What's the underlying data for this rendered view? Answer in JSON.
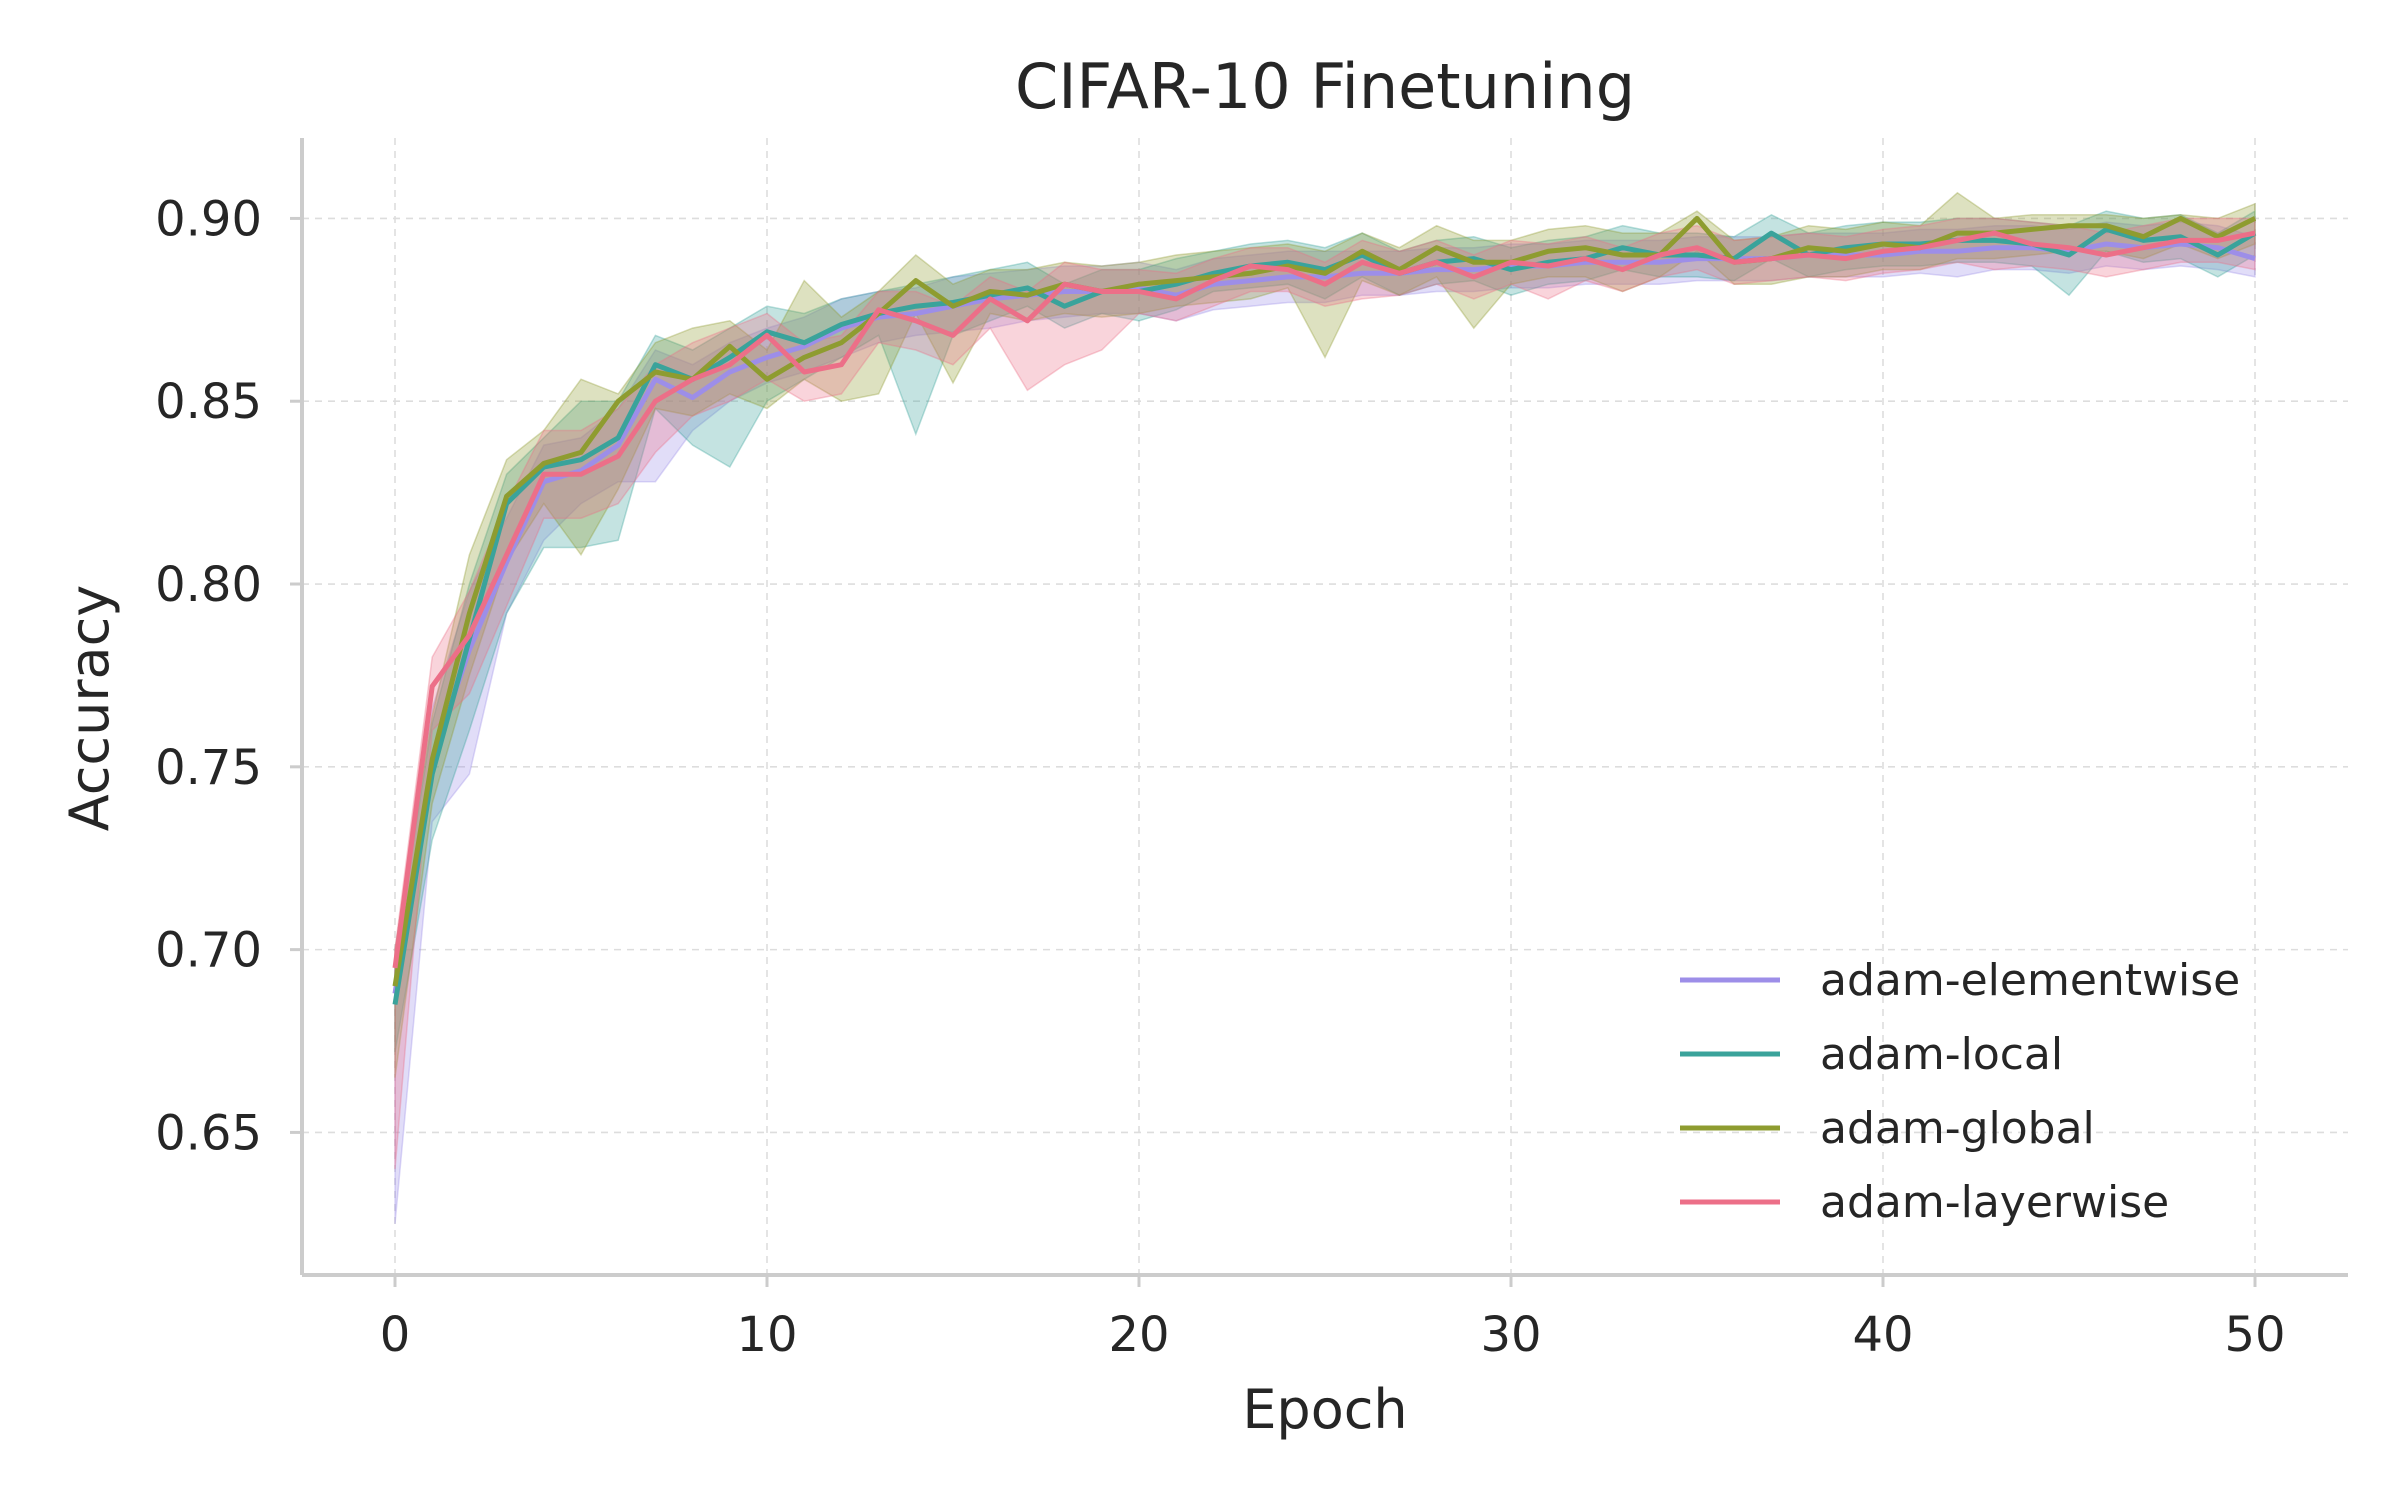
{
  "chart_data": {
    "type": "line",
    "title": "CIFAR-10 Finetuning",
    "xlabel": "Epoch",
    "ylabel": "Accuracy",
    "xlim": [
      -2.5,
      52.5
    ],
    "ylim": [
      0.611,
      0.922
    ],
    "xticks": [
      0,
      10,
      20,
      30,
      40,
      50
    ],
    "xtick_labels": [
      "0",
      "10",
      "20",
      "30",
      "40",
      "50"
    ],
    "yticks": [
      0.65,
      0.7,
      0.75,
      0.8,
      0.85,
      0.9
    ],
    "ytick_labels": [
      "0.65",
      "0.70",
      "0.75",
      "0.80",
      "0.85",
      "0.90"
    ],
    "grid": true,
    "legend_position": "lower-right",
    "x": [
      0,
      1,
      2,
      3,
      4,
      5,
      6,
      7,
      8,
      9,
      10,
      11,
      12,
      13,
      14,
      15,
      16,
      17,
      18,
      19,
      20,
      21,
      22,
      23,
      24,
      25,
      26,
      27,
      28,
      29,
      30,
      31,
      32,
      33,
      34,
      35,
      36,
      37,
      38,
      39,
      40,
      41,
      42,
      43,
      44,
      45,
      46,
      47,
      48,
      49,
      50
    ],
    "series": [
      {
        "name": "adam-elementwise",
        "color": "#9d8ee8",
        "values": [
          0.688,
          0.752,
          0.782,
          0.806,
          0.828,
          0.831,
          0.838,
          0.856,
          0.851,
          0.858,
          0.862,
          0.865,
          0.87,
          0.873,
          0.874,
          0.876,
          0.878,
          0.879,
          0.88,
          0.88,
          0.881,
          0.879,
          0.882,
          0.883,
          0.884,
          0.884,
          0.885,
          0.885,
          0.886,
          0.886,
          0.887,
          0.887,
          0.888,
          0.888,
          0.888,
          0.889,
          0.889,
          0.889,
          0.89,
          0.89,
          0.89,
          0.891,
          0.891,
          0.892,
          0.892,
          0.891,
          0.893,
          0.892,
          0.893,
          0.892,
          0.889
        ],
        "lower": [
          0.625,
          0.735,
          0.748,
          0.792,
          0.812,
          0.822,
          0.828,
          0.828,
          0.842,
          0.85,
          0.855,
          0.858,
          0.862,
          0.866,
          0.868,
          0.869,
          0.87,
          0.872,
          0.873,
          0.874,
          0.874,
          0.872,
          0.875,
          0.876,
          0.877,
          0.877,
          0.879,
          0.879,
          0.88,
          0.88,
          0.881,
          0.881,
          0.882,
          0.882,
          0.882,
          0.883,
          0.883,
          0.883,
          0.884,
          0.884,
          0.884,
          0.885,
          0.884,
          0.886,
          0.886,
          0.885,
          0.887,
          0.886,
          0.887,
          0.886,
          0.884
        ],
        "upper": [
          0.7,
          0.766,
          0.798,
          0.818,
          0.838,
          0.84,
          0.848,
          0.864,
          0.86,
          0.866,
          0.87,
          0.873,
          0.878,
          0.88,
          0.881,
          0.884,
          0.885,
          0.886,
          0.887,
          0.887,
          0.888,
          0.886,
          0.889,
          0.89,
          0.891,
          0.891,
          0.891,
          0.891,
          0.892,
          0.892,
          0.893,
          0.893,
          0.894,
          0.894,
          0.894,
          0.895,
          0.895,
          0.895,
          0.896,
          0.896,
          0.896,
          0.897,
          0.897,
          0.898,
          0.898,
          0.897,
          0.899,
          0.898,
          0.899,
          0.898,
          0.895
        ]
      },
      {
        "name": "adam-local",
        "color": "#3aa39b",
        "values": [
          0.685,
          0.748,
          0.785,
          0.822,
          0.832,
          0.834,
          0.84,
          0.86,
          0.856,
          0.862,
          0.869,
          0.866,
          0.871,
          0.874,
          0.876,
          0.877,
          0.879,
          0.881,
          0.876,
          0.88,
          0.88,
          0.882,
          0.885,
          0.887,
          0.888,
          0.886,
          0.89,
          0.885,
          0.888,
          0.889,
          0.886,
          0.888,
          0.889,
          0.892,
          0.89,
          0.89,
          0.889,
          0.896,
          0.89,
          0.892,
          0.893,
          0.893,
          0.894,
          0.894,
          0.893,
          0.89,
          0.897,
          0.894,
          0.895,
          0.89,
          0.896
        ],
        "lower": [
          0.672,
          0.73,
          0.76,
          0.792,
          0.81,
          0.81,
          0.812,
          0.848,
          0.838,
          0.832,
          0.85,
          0.856,
          0.862,
          0.868,
          0.841,
          0.868,
          0.872,
          0.876,
          0.87,
          0.874,
          0.872,
          0.875,
          0.88,
          0.881,
          0.882,
          0.878,
          0.884,
          0.879,
          0.882,
          0.883,
          0.879,
          0.882,
          0.883,
          0.886,
          0.884,
          0.884,
          0.883,
          0.889,
          0.884,
          0.886,
          0.887,
          0.887,
          0.888,
          0.888,
          0.887,
          0.879,
          0.891,
          0.888,
          0.889,
          0.884,
          0.89
        ],
        "upper": [
          0.698,
          0.762,
          0.8,
          0.83,
          0.84,
          0.85,
          0.85,
          0.868,
          0.864,
          0.87,
          0.876,
          0.874,
          0.878,
          0.88,
          0.882,
          0.884,
          0.886,
          0.888,
          0.882,
          0.886,
          0.886,
          0.889,
          0.891,
          0.893,
          0.894,
          0.892,
          0.896,
          0.891,
          0.894,
          0.895,
          0.892,
          0.894,
          0.895,
          0.898,
          0.896,
          0.896,
          0.895,
          0.901,
          0.896,
          0.898,
          0.899,
          0.899,
          0.9,
          0.9,
          0.899,
          0.898,
          0.902,
          0.9,
          0.901,
          0.896,
          0.902
        ]
      },
      {
        "name": "adam-global",
        "color": "#8e9c30",
        "values": [
          0.69,
          0.752,
          0.792,
          0.824,
          0.833,
          0.836,
          0.85,
          0.858,
          0.856,
          0.865,
          0.856,
          0.862,
          0.866,
          0.874,
          0.883,
          0.876,
          0.88,
          0.879,
          0.882,
          0.88,
          0.882,
          0.883,
          0.884,
          0.885,
          0.887,
          0.885,
          0.891,
          0.886,
          0.892,
          0.888,
          0.888,
          0.891,
          0.892,
          0.89,
          0.89,
          0.9,
          0.888,
          0.889,
          0.892,
          0.891,
          0.893,
          0.892,
          0.896,
          0.896,
          0.897,
          0.898,
          0.898,
          0.895,
          0.9,
          0.895,
          0.9
        ],
        "lower": [
          0.665,
          0.74,
          0.775,
          0.806,
          0.822,
          0.808,
          0.826,
          0.848,
          0.846,
          0.852,
          0.848,
          0.856,
          0.85,
          0.852,
          0.874,
          0.855,
          0.874,
          0.872,
          0.874,
          0.873,
          0.874,
          0.876,
          0.877,
          0.878,
          0.881,
          0.862,
          0.883,
          0.879,
          0.884,
          0.87,
          0.882,
          0.884,
          0.884,
          0.88,
          0.884,
          0.891,
          0.882,
          0.882,
          0.884,
          0.884,
          0.886,
          0.886,
          0.889,
          0.889,
          0.89,
          0.891,
          0.891,
          0.889,
          0.893,
          0.889,
          0.893
        ],
        "upper": [
          0.7,
          0.764,
          0.808,
          0.834,
          0.842,
          0.856,
          0.852,
          0.866,
          0.87,
          0.872,
          0.864,
          0.883,
          0.873,
          0.88,
          0.89,
          0.882,
          0.886,
          0.886,
          0.888,
          0.887,
          0.888,
          0.89,
          0.891,
          0.892,
          0.893,
          0.891,
          0.896,
          0.892,
          0.898,
          0.894,
          0.894,
          0.897,
          0.898,
          0.896,
          0.896,
          0.902,
          0.894,
          0.895,
          0.898,
          0.897,
          0.899,
          0.898,
          0.907,
          0.9,
          0.901,
          0.901,
          0.901,
          0.9,
          0.901,
          0.9,
          0.904
        ]
      },
      {
        "name": "adam-layerwise",
        "color": "#ec6f88",
        "values": [
          0.695,
          0.772,
          0.786,
          0.808,
          0.83,
          0.83,
          0.835,
          0.85,
          0.856,
          0.86,
          0.868,
          0.858,
          0.86,
          0.875,
          0.872,
          0.868,
          0.878,
          0.872,
          0.882,
          0.88,
          0.88,
          0.878,
          0.883,
          0.887,
          0.886,
          0.882,
          0.888,
          0.885,
          0.888,
          0.884,
          0.888,
          0.887,
          0.889,
          0.886,
          0.89,
          0.892,
          0.888,
          0.889,
          0.89,
          0.889,
          0.891,
          0.892,
          0.894,
          0.896,
          0.893,
          0.892,
          0.89,
          0.892,
          0.894,
          0.894,
          0.896
        ],
        "lower": [
          0.64,
          0.76,
          0.77,
          0.794,
          0.818,
          0.818,
          0.822,
          0.836,
          0.846,
          0.85,
          0.856,
          0.85,
          0.852,
          0.866,
          0.864,
          0.86,
          0.87,
          0.853,
          0.86,
          0.864,
          0.874,
          0.872,
          0.876,
          0.88,
          0.88,
          0.876,
          0.878,
          0.879,
          0.882,
          0.878,
          0.882,
          0.878,
          0.883,
          0.88,
          0.884,
          0.886,
          0.882,
          0.883,
          0.884,
          0.883,
          0.885,
          0.886,
          0.888,
          0.886,
          0.887,
          0.886,
          0.884,
          0.886,
          0.888,
          0.888,
          0.886
        ],
        "upper": [
          0.7,
          0.78,
          0.798,
          0.822,
          0.842,
          0.842,
          0.848,
          0.86,
          0.866,
          0.87,
          0.874,
          0.866,
          0.868,
          0.88,
          0.88,
          0.876,
          0.884,
          0.88,
          0.888,
          0.886,
          0.886,
          0.885,
          0.889,
          0.892,
          0.892,
          0.888,
          0.894,
          0.891,
          0.894,
          0.89,
          0.894,
          0.893,
          0.895,
          0.892,
          0.896,
          0.898,
          0.894,
          0.895,
          0.896,
          0.895,
          0.897,
          0.898,
          0.9,
          0.9,
          0.899,
          0.898,
          0.896,
          0.898,
          0.9,
          0.9,
          0.9
        ]
      }
    ]
  }
}
